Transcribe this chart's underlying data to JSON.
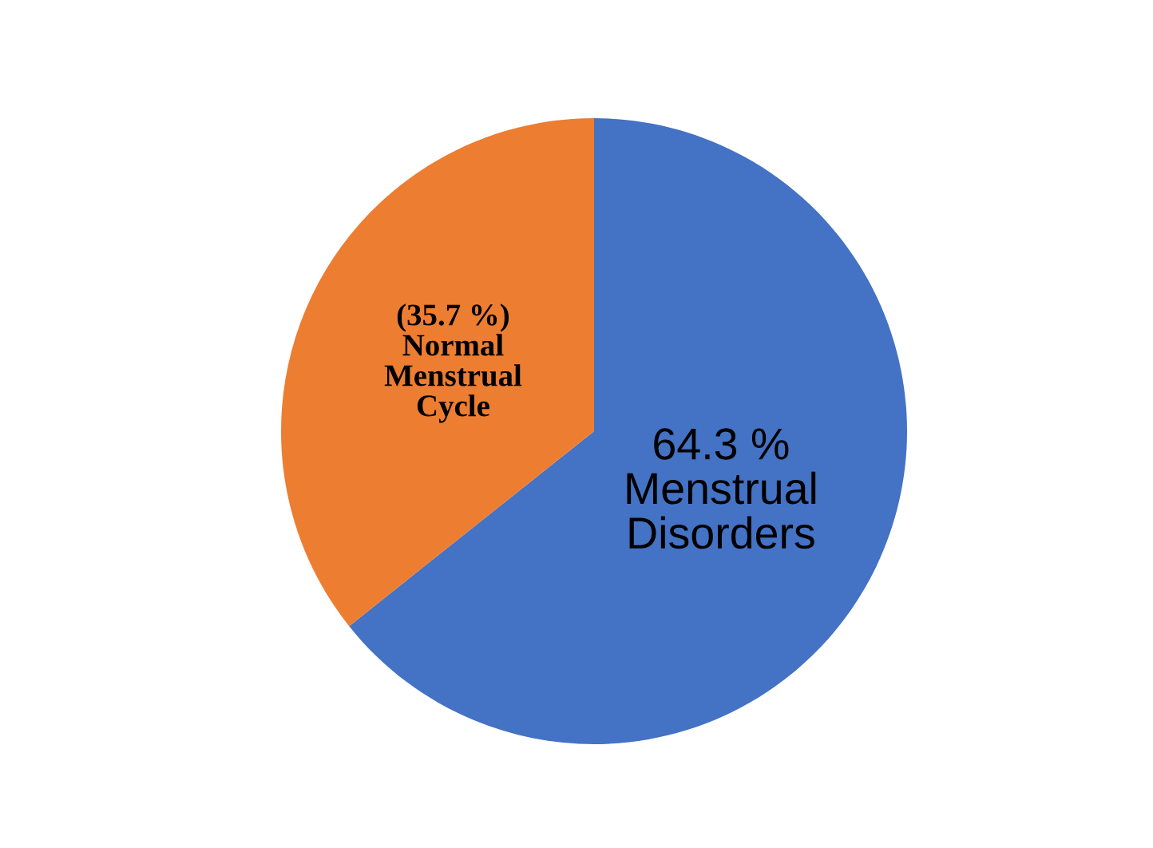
{
  "chart_data": {
    "type": "pie",
    "categories": [
      "Menstrual Disorders",
      "Normal Menstrual Cycle"
    ],
    "values": [
      64.3,
      35.7
    ],
    "value_labels": [
      "64.3 %",
      "(35.7 %)"
    ],
    "colors": [
      "#4472c4",
      "#ed7d31"
    ]
  }
}
